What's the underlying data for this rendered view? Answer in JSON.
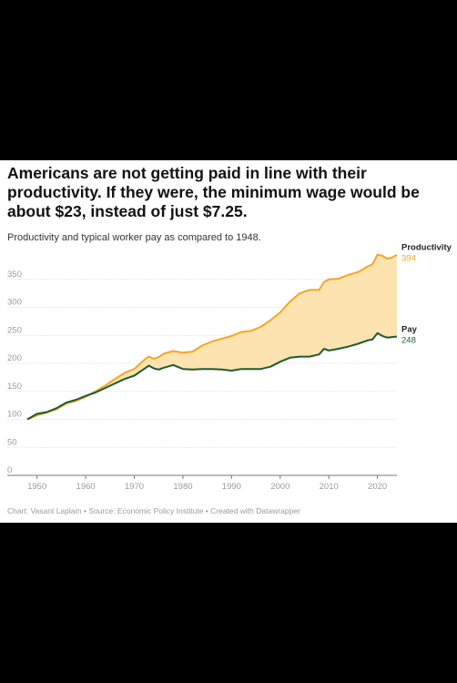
{
  "chart_data": {
    "type": "area",
    "title": "Americans are not getting paid in line with their productivity. If they were, the minimum wage would be about $23, instead of just $7.25.",
    "subtitle": "Productivity and typical worker pay as compared to 1948.",
    "source": "Chart: Vasant Laplam • Source: Economic Policy Institute • Created with Datawrapper",
    "xlim": [
      1948,
      2024
    ],
    "ylim": [
      0,
      400
    ],
    "y_ticks": [
      0,
      50,
      100,
      150,
      200,
      250,
      300,
      350
    ],
    "x_ticks": [
      1950,
      1960,
      1970,
      1980,
      1990,
      2000,
      2010,
      2020
    ],
    "grid": true,
    "colors": {
      "productivity": "#f4a623",
      "pay": "#1d5c32",
      "fill": "#fde3b0"
    },
    "series": [
      {
        "name": "Productivity",
        "end_label": "394",
        "x": [
          1948,
          1950,
          1952,
          1954,
          1956,
          1958,
          1960,
          1962,
          1964,
          1966,
          1968,
          1970,
          1972,
          1973,
          1974,
          1975,
          1976,
          1978,
          1980,
          1982,
          1984,
          1986,
          1988,
          1990,
          1992,
          1994,
          1996,
          1998,
          2000,
          2002,
          2004,
          2006,
          2008,
          2009,
          2010,
          2012,
          2014,
          2016,
          2018,
          2019,
          2020,
          2021,
          2022,
          2023,
          2024
        ],
        "values": [
          100,
          107,
          112,
          118,
          128,
          133,
          140,
          150,
          160,
          172,
          183,
          190,
          206,
          212,
          208,
          211,
          217,
          222,
          219,
          221,
          232,
          239,
          244,
          249,
          256,
          258,
          265,
          277,
          291,
          310,
          325,
          331,
          331,
          345,
          350,
          351,
          358,
          363,
          373,
          377,
          394,
          392,
          387,
          389,
          394
        ]
      },
      {
        "name": "Pay",
        "end_label": "248",
        "x": [
          1948,
          1950,
          1952,
          1954,
          1956,
          1958,
          1960,
          1962,
          1964,
          1966,
          1968,
          1970,
          1972,
          1973,
          1974,
          1975,
          1976,
          1978,
          1980,
          1982,
          1984,
          1986,
          1988,
          1990,
          1992,
          1994,
          1996,
          1998,
          2000,
          2002,
          2004,
          2006,
          2008,
          2009,
          2010,
          2012,
          2014,
          2016,
          2018,
          2019,
          2020,
          2021,
          2022,
          2023,
          2024
        ],
        "values": [
          100,
          110,
          113,
          120,
          130,
          135,
          142,
          148,
          156,
          164,
          172,
          178,
          190,
          196,
          191,
          189,
          192,
          197,
          190,
          189,
          190,
          190,
          189,
          187,
          190,
          190,
          190,
          194,
          203,
          210,
          212,
          212,
          216,
          226,
          223,
          226,
          230,
          235,
          241,
          243,
          254,
          249,
          246,
          247,
          248
        ]
      }
    ]
  }
}
